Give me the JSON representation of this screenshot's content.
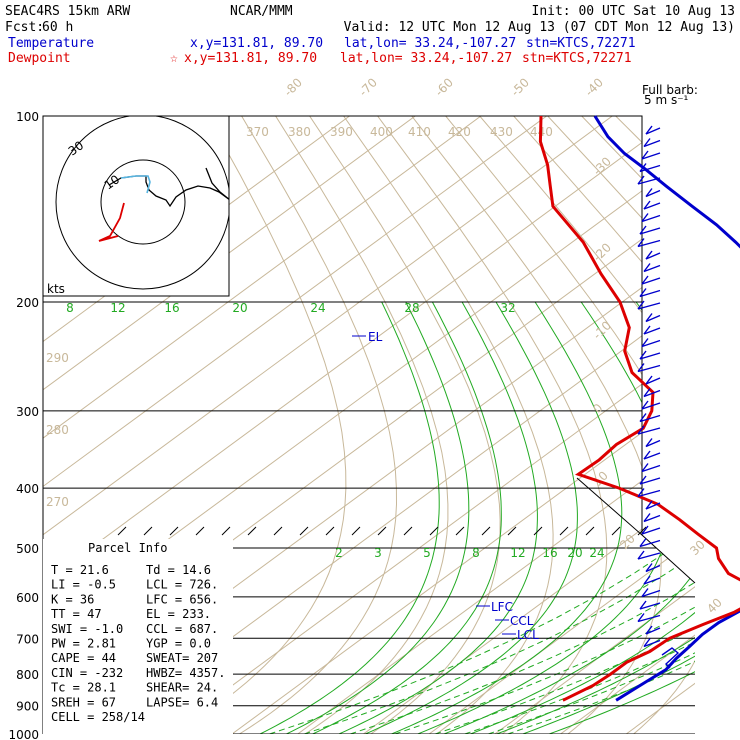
{
  "header": {
    "model": "SEAC4RS 15km ARW",
    "center": "NCAR/MMM",
    "init": "Init: 00 UTC Sat 10 Aug 13",
    "fcst_label": "Fcst:",
    "fcst_value": "60 h",
    "valid": "Valid: 12 UTC Mon 12 Aug 13 (07 CDT Mon 12 Aug 13)",
    "temperature_label": "Temperature",
    "dewpoint_label": "Dewpoint",
    "temp_xy": "x,y=131.81, 89.70",
    "temp_latlon": "lat,lon= 33.24,-107.27",
    "temp_stn": "stn=KTCS,72271",
    "dew_xy": "x,y=131.81, 89.70",
    "dew_latlon": "lat,lon= 33.24,-107.27",
    "dew_stn": "stn=KTCS,72271",
    "star": "☆",
    "colors": {
      "temperature": "#0000cc",
      "dewpoint": "#dd0000",
      "isotherm": "#c8b89a",
      "mixing_ratio": "#22aa22"
    }
  },
  "barb_label": {
    "line1": "Full barb:",
    "line2": "5 m s⁻¹"
  },
  "hodograph": {
    "units": "kts",
    "ring_label": "30",
    "inner_label": "10"
  },
  "parcel": {
    "title": "Parcel Info",
    "rows": [
      [
        "T  =   21.6",
        "Td =  14.6"
      ],
      [
        "LI =   -0.5",
        "LCL =  726."
      ],
      [
        "K  =     36",
        "LFC =  656."
      ],
      [
        "TT =     47",
        "EL  =  233."
      ],
      [
        "SWI =  -1.0",
        "CCL =  687."
      ],
      [
        "PW =   2.81",
        "YGP =   0.0"
      ],
      [
        "CAPE =   44",
        "SWEAT=  207"
      ],
      [
        "CIN =  -232",
        "HWBZ= 4357."
      ],
      [
        "Tc =   28.1",
        "SHEAR=  24."
      ],
      [
        "SREH =   67",
        "LAPSE=  6.4"
      ],
      [
        "CELL = 258/14",
        ""
      ]
    ]
  },
  "chart_data": {
    "type": "line",
    "title": "",
    "y_axis": {
      "quantity": "pressure",
      "scale": "log",
      "range": [
        1000,
        100
      ],
      "ticks": [
        100,
        200,
        300,
        400,
        500,
        600,
        700,
        800,
        900,
        1000
      ],
      "tick_labels": [
        "100",
        "200",
        "300",
        "400",
        "500",
        "600",
        "700",
        "800",
        "900",
        "1000"
      ]
    },
    "isotherm_labels": [
      "-80",
      "-70",
      "-60",
      "-50",
      "-40",
      "-30",
      "-20",
      "-10",
      "0",
      "10",
      "20",
      "30",
      "40"
    ],
    "theta_labels": [
      "370",
      "380",
      "390",
      "400",
      "410",
      "420",
      "430",
      "440",
      "290",
      "280",
      "270"
    ],
    "mixing_ratio_labels_upper": [
      "8",
      "12",
      "16",
      "20",
      "24",
      "28",
      "32"
    ],
    "mixing_ratio_labels_lower": [
      "2",
      "3",
      "5",
      "8",
      "12",
      "16",
      "20",
      "24"
    ],
    "level_markers": [
      "EL",
      "LFC",
      "CCL",
      "LCL"
    ],
    "series": [
      {
        "name": "Temperature",
        "points": [
          [
            882,
            27.7
          ],
          [
            824,
            24.1
          ],
          [
            787,
            22.0
          ],
          [
            754,
            19.0
          ],
          [
            722,
            16.5
          ],
          [
            690,
            14.0
          ],
          [
            660,
            12.3
          ],
          [
            630,
            11.6
          ],
          [
            600,
            10.8
          ],
          [
            566,
            9.4
          ],
          [
            530,
            6.6
          ],
          [
            500,
            3.8
          ],
          [
            460,
            1.0
          ],
          [
            420,
            -2.7
          ],
          [
            385,
            -5.7
          ],
          [
            350,
            -9.5
          ],
          [
            320,
            -13.7
          ],
          [
            290,
            -19.0
          ],
          [
            265,
            -24.0
          ],
          [
            240,
            -29.1
          ],
          [
            220,
            -34.0
          ],
          [
            200,
            -40.3
          ],
          [
            180,
            -47.3
          ],
          [
            160,
            -55.0
          ],
          [
            150,
            -59.3
          ],
          [
            140,
            -64.4
          ],
          [
            130,
            -69.7
          ],
          [
            122,
            -74.0
          ],
          [
            115,
            -78.2
          ],
          [
            108,
            -81.7
          ],
          [
            100,
            -84.8
          ]
        ]
      },
      {
        "name": "Dewpoint",
        "points": [
          [
            882,
            19.6
          ],
          [
            835,
            17.6
          ],
          [
            800,
            15.4
          ],
          [
            765,
            13.0
          ],
          [
            735,
            12.3
          ],
          [
            700,
            10.4
          ],
          [
            665,
            10.6
          ],
          [
            635,
            11.2
          ],
          [
            608,
            10.7
          ],
          [
            580,
            6.7
          ],
          [
            550,
            -1.6
          ],
          [
            520,
            -7.3
          ],
          [
            500,
            -10.4
          ],
          [
            475,
            -16.7
          ],
          [
            450,
            -23.0
          ],
          [
            425,
            -29.8
          ],
          [
            400,
            -39.2
          ],
          [
            380,
            -48.2
          ],
          [
            360,
            -47.8
          ],
          [
            340,
            -48.0
          ],
          [
            320,
            -46.7
          ],
          [
            300,
            -48.2
          ],
          [
            280,
            -50.8
          ],
          [
            260,
            -56.8
          ],
          [
            240,
            -60.7
          ],
          [
            220,
            -62.8
          ],
          [
            200,
            -67.0
          ],
          [
            180,
            -72.7
          ],
          [
            160,
            -78.2
          ],
          [
            140,
            -85.6
          ],
          [
            130,
            -87.4
          ],
          [
            120,
            -89.2
          ],
          [
            110,
            -91.7
          ],
          [
            100,
            -93.0
          ]
        ]
      }
    ],
    "legend": "none",
    "grid": true
  }
}
